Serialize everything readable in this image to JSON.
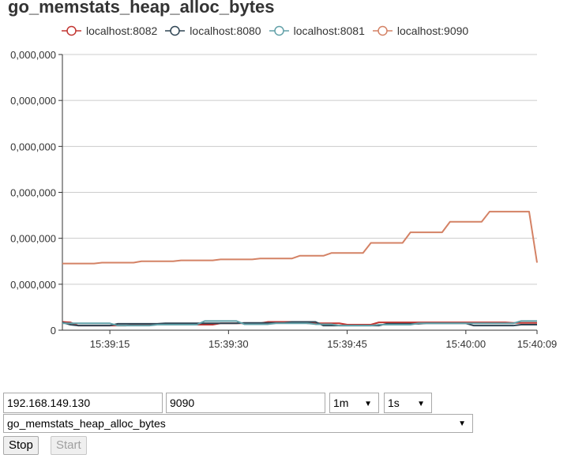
{
  "chart_data": {
    "type": "line",
    "title": "go_memstats_heap_alloc_bytes",
    "x_ticks": [
      "15:39:15",
      "15:39:30",
      "15:39:45",
      "15:40:00",
      "15:40:09"
    ],
    "y_ticks": [
      "0",
      "0,000,000",
      "0,000,000",
      "0,000,000",
      "0,000,000",
      "0,000,000",
      "0,000,000"
    ],
    "legend_placement": "top",
    "grid": true,
    "x_range": [
      0,
      60
    ],
    "y_range": [
      0,
      6
    ],
    "series": [
      {
        "name": "localhost:8082",
        "color": "#c23531",
        "values": [
          0.18,
          0.17,
          0.1,
          0.1,
          0.1,
          0.1,
          0.1,
          0.1,
          0.1,
          0.12,
          0.12,
          0.12,
          0.12,
          0.12,
          0.12,
          0.12,
          0.12,
          0.12,
          0.12,
          0.12,
          0.15,
          0.15,
          0.15,
          0.15,
          0.15,
          0.15,
          0.18,
          0.18,
          0.18,
          0.18,
          0.18,
          0.15,
          0.15,
          0.15,
          0.15,
          0.15,
          0.12,
          0.12,
          0.12,
          0.12,
          0.17,
          0.17,
          0.17,
          0.17,
          0.17,
          0.17,
          0.17,
          0.17,
          0.17,
          0.17,
          0.17,
          0.17,
          0.17,
          0.17,
          0.17,
          0.17,
          0.17,
          0.16,
          0.16,
          0.16,
          0.16
        ]
      },
      {
        "name": "localhost:8080",
        "color": "#2f4554",
        "values": [
          0.17,
          0.12,
          0.1,
          0.1,
          0.1,
          0.1,
          0.1,
          0.14,
          0.14,
          0.14,
          0.14,
          0.14,
          0.14,
          0.15,
          0.15,
          0.15,
          0.15,
          0.15,
          0.15,
          0.15,
          0.15,
          0.15,
          0.15,
          0.16,
          0.16,
          0.16,
          0.16,
          0.16,
          0.16,
          0.18,
          0.18,
          0.18,
          0.18,
          0.1,
          0.1,
          0.1,
          0.1,
          0.1,
          0.1,
          0.1,
          0.1,
          0.14,
          0.14,
          0.14,
          0.14,
          0.14,
          0.15,
          0.15,
          0.15,
          0.15,
          0.15,
          0.15,
          0.1,
          0.1,
          0.1,
          0.1,
          0.1,
          0.1,
          0.12,
          0.12,
          0.12
        ]
      },
      {
        "name": "localhost:8081",
        "color": "#61a0a8",
        "values": [
          0.15,
          0.15,
          0.15,
          0.15,
          0.15,
          0.15,
          0.15,
          0.1,
          0.1,
          0.1,
          0.1,
          0.1,
          0.12,
          0.12,
          0.12,
          0.12,
          0.12,
          0.12,
          0.2,
          0.2,
          0.2,
          0.2,
          0.2,
          0.13,
          0.13,
          0.13,
          0.13,
          0.15,
          0.15,
          0.15,
          0.15,
          0.15,
          0.13,
          0.13,
          0.13,
          0.1,
          0.1,
          0.1,
          0.1,
          0.1,
          0.12,
          0.12,
          0.12,
          0.12,
          0.12,
          0.15,
          0.15,
          0.15,
          0.15,
          0.15,
          0.15,
          0.15,
          0.15,
          0.15,
          0.15,
          0.15,
          0.15,
          0.15,
          0.2,
          0.2,
          0.2
        ]
      },
      {
        "name": "localhost:9090",
        "color": "#d48265",
        "values": [
          1.45,
          1.45,
          1.45,
          1.45,
          1.45,
          1.47,
          1.47,
          1.47,
          1.47,
          1.47,
          1.5,
          1.5,
          1.5,
          1.5,
          1.5,
          1.52,
          1.52,
          1.52,
          1.52,
          1.52,
          1.54,
          1.54,
          1.54,
          1.54,
          1.54,
          1.56,
          1.56,
          1.56,
          1.56,
          1.56,
          1.62,
          1.62,
          1.62,
          1.62,
          1.68,
          1.68,
          1.68,
          1.68,
          1.68,
          1.9,
          1.9,
          1.9,
          1.9,
          1.9,
          2.13,
          2.13,
          2.13,
          2.13,
          2.13,
          2.36,
          2.36,
          2.36,
          2.36,
          2.36,
          2.58,
          2.58,
          2.58,
          2.58,
          2.58,
          2.58,
          1.47
        ]
      }
    ]
  },
  "controls": {
    "host_value": "192.168.149.130",
    "port_value": "9090",
    "range_value": "1m",
    "step_value": "1s",
    "metric_value": "go_memstats_heap_alloc_bytes",
    "stop_label": "Stop",
    "start_label": "Start",
    "dropdown_icon": "triangle-down-icon"
  }
}
